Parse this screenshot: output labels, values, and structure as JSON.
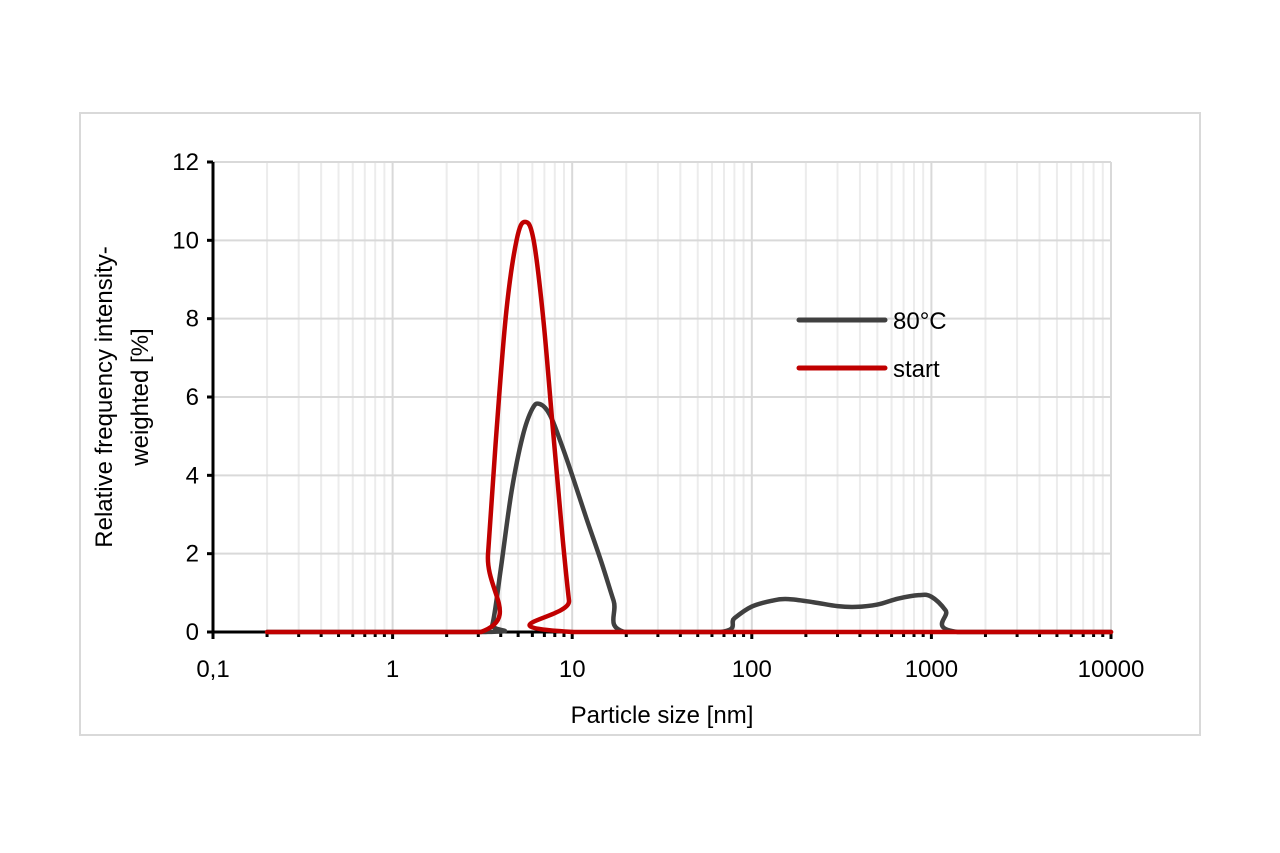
{
  "chart_data": {
    "type": "line",
    "title": "",
    "xlabel": "Particle size [nm]",
    "ylabel_lines": [
      "Relative frequency intensity-",
      "weighted [%]"
    ],
    "ylabel": "Relative frequency intensity-weighted [%]",
    "xscale": "log",
    "xlim": [
      0.1,
      10000
    ],
    "ylim": [
      0,
      12
    ],
    "xticks": [
      "0,1",
      "1",
      "10",
      "100",
      "1000",
      "10000"
    ],
    "yticks": [
      "0",
      "2",
      "4",
      "6",
      "8",
      "10",
      "12"
    ],
    "grid": true,
    "legend_position": "upper right (inside plot)",
    "series": [
      {
        "name": "80°C",
        "color": "#404040",
        "points": [
          [
            0.2,
            0
          ],
          [
            3.3,
            0
          ],
          [
            3.6,
            0.2
          ],
          [
            4.0,
            1.6
          ],
          [
            4.6,
            3.6
          ],
          [
            5.3,
            5.0
          ],
          [
            6.0,
            5.7
          ],
          [
            6.6,
            5.82
          ],
          [
            7.5,
            5.55
          ],
          [
            8.7,
            4.8
          ],
          [
            10,
            4.0
          ],
          [
            12,
            2.9
          ],
          [
            14.5,
            1.8
          ],
          [
            17,
            0.8
          ],
          [
            19.5,
            0
          ],
          [
            67,
            0
          ],
          [
            80,
            0.35
          ],
          [
            100,
            0.65
          ],
          [
            130,
            0.8
          ],
          [
            160,
            0.84
          ],
          [
            220,
            0.76
          ],
          [
            300,
            0.66
          ],
          [
            380,
            0.64
          ],
          [
            500,
            0.7
          ],
          [
            650,
            0.85
          ],
          [
            850,
            0.94
          ],
          [
            1000,
            0.9
          ],
          [
            1200,
            0.55
          ],
          [
            1400,
            0
          ],
          [
            10000,
            0
          ]
        ]
      },
      {
        "name": "start",
        "color": "#c00000",
        "points": [
          [
            0.2,
            0
          ],
          [
            3.1,
            0
          ],
          [
            3.4,
            2.0
          ],
          [
            3.8,
            5.2
          ],
          [
            4.3,
            8.2
          ],
          [
            4.9,
            10.0
          ],
          [
            5.46,
            10.47
          ],
          [
            6.1,
            10.0
          ],
          [
            6.9,
            8.0
          ],
          [
            7.8,
            5.2
          ],
          [
            8.8,
            2.5
          ],
          [
            9.6,
            0.8
          ],
          [
            10.2,
            0
          ],
          [
            10000,
            0
          ]
        ]
      }
    ]
  },
  "legend": {
    "items": [
      {
        "label": "80°C",
        "color": "#404040"
      },
      {
        "label": "start",
        "color": "#c00000"
      }
    ]
  },
  "axes": {
    "x_title": "Particle size [nm]",
    "y_title_line1": "Relative frequency intensity-",
    "y_title_line2": "weighted [%]",
    "x_ticks": [
      "0,1",
      "1",
      "10",
      "100",
      "1000",
      "10000"
    ],
    "y_ticks": [
      "0",
      "2",
      "4",
      "6",
      "8",
      "10",
      "12"
    ]
  },
  "colors": {
    "grid_major": "#d9d9d9",
    "grid_minor": "#ececec",
    "axis": "#000000",
    "frame": "#d9d9d9"
  }
}
